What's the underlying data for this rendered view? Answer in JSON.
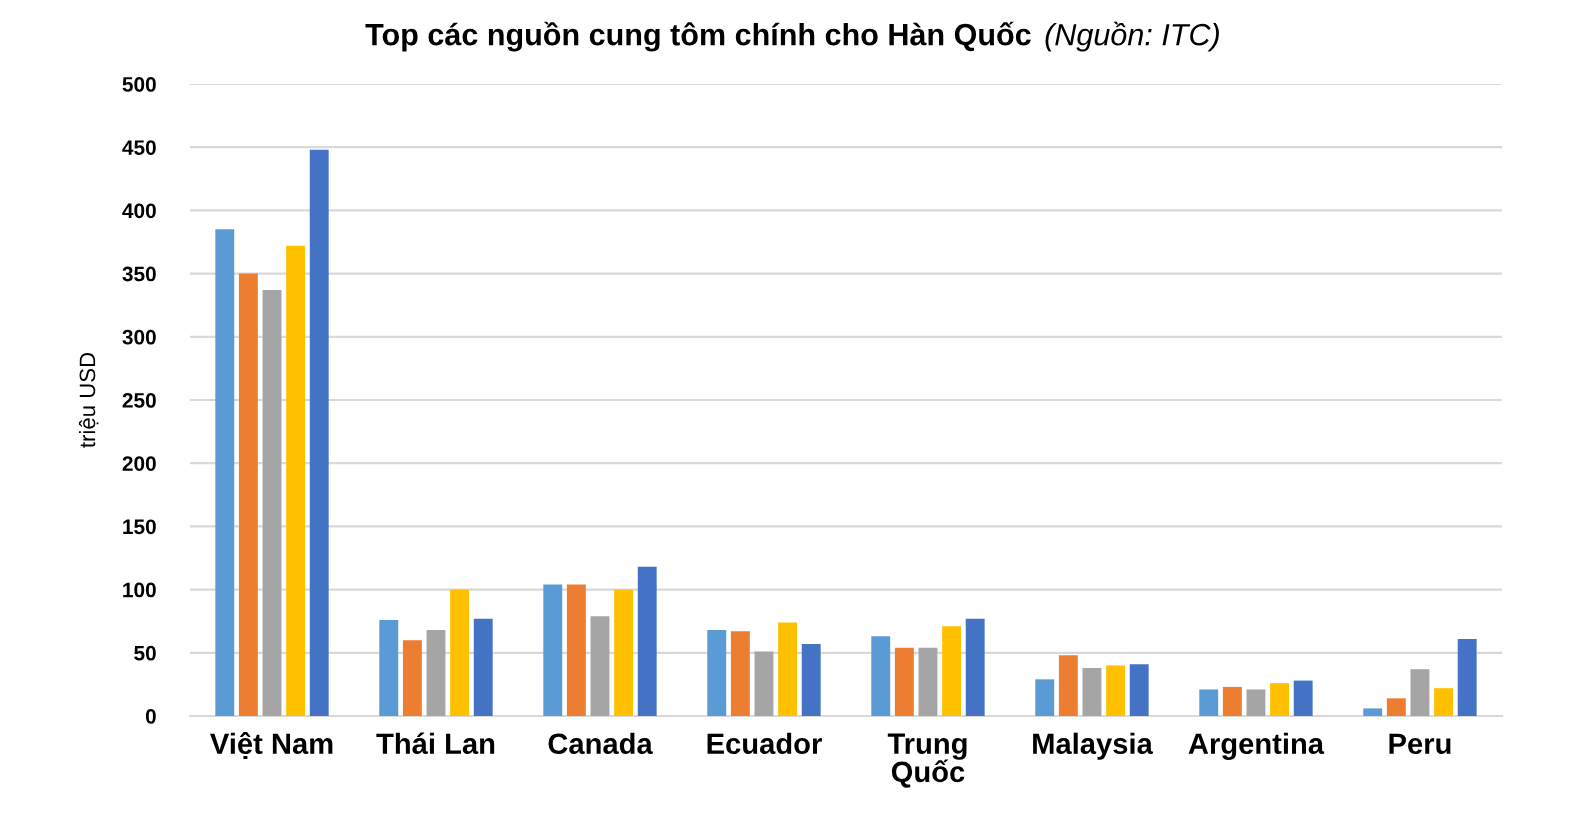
{
  "chart_data": {
    "type": "bar",
    "title": "Top các nguồn cung tôm chính cho Hàn Quốc",
    "annotations": [
      "(Nguồn: ITC)"
    ],
    "ylabel": "triệu USD",
    "categories": [
      "Việt Nam",
      "Thái Lan",
      "Canada",
      "Ecuador",
      "Trung\nQuốc",
      "Malaysia",
      "Argentina",
      "Peru"
    ],
    "series": [
      {
        "color": "#5b9bd5",
        "values": [
          385,
          76,
          104,
          68,
          63,
          29,
          21,
          6
        ]
      },
      {
        "color": "#ed7d31",
        "values": [
          350,
          60,
          104,
          67,
          54,
          48,
          23,
          14
        ]
      },
      {
        "color": "#a5a5a5",
        "values": [
          337,
          68,
          79,
          51,
          54,
          38,
          21,
          37
        ]
      },
      {
        "color": "#ffc000",
        "values": [
          372,
          100,
          100,
          74,
          71,
          40,
          26,
          22
        ]
      },
      {
        "color": "#4472c4",
        "values": [
          448,
          77,
          118,
          57,
          77,
          41,
          28,
          61
        ]
      }
    ],
    "ylim": [
      0,
      500
    ],
    "yticks": [
      0,
      50,
      100,
      150,
      200,
      250,
      300,
      350,
      400,
      450,
      500
    ],
    "grid": "y"
  }
}
